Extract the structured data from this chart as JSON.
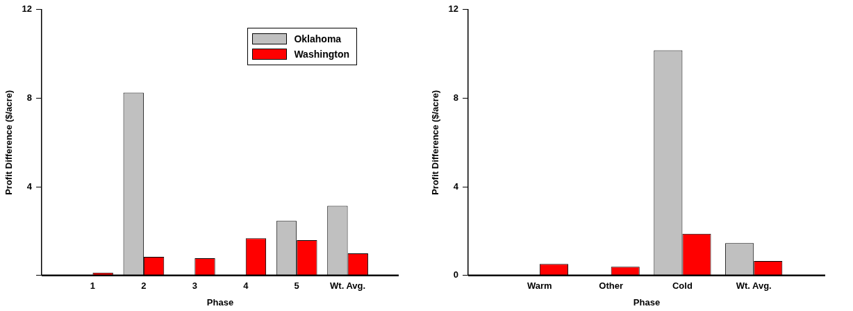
{
  "chart_data": [
    {
      "type": "bar",
      "xlabel": "Phase",
      "ylabel": "Profit Difference ($/acre)",
      "categories": [
        null,
        "1",
        "2",
        "3",
        "4",
        "5",
        "Wt. Avg.",
        null
      ],
      "series": [
        {
          "name": "Oklahoma",
          "color": "#c0c0c0",
          "values": [
            null,
            0,
            8.25,
            0,
            0,
            2.46,
            3.14,
            null
          ]
        },
        {
          "name": "Washington",
          "color": "#ff0000",
          "values": [
            null,
            0.13,
            0.84,
            0.78,
            1.68,
            1.59,
            1.0,
            null
          ]
        }
      ],
      "ylim": [
        0,
        12
      ],
      "yticks": [
        {
          "value": 0,
          "label": null
        },
        4,
        8,
        12
      ],
      "grid": false,
      "legend": "top right"
    },
    {
      "type": "bar",
      "xlabel": "Phase",
      "ylabel": "Profit Difference ($/acre)",
      "categories": [
        null,
        "Warm",
        "Other",
        "Cold",
        "Wt. Avg.",
        null
      ],
      "series": [
        {
          "color": "#c0c0c0",
          "values": [
            null,
            0,
            0,
            10.16,
            1.46,
            null
          ]
        },
        {
          "color": "#ff0000",
          "values": [
            null,
            0.52,
            0.39,
            1.88,
            0.65,
            null
          ]
        }
      ],
      "ylim": [
        0,
        12
      ],
      "yticks": [
        0,
        4,
        8,
        12
      ],
      "grid": false,
      "legend": false
    }
  ]
}
